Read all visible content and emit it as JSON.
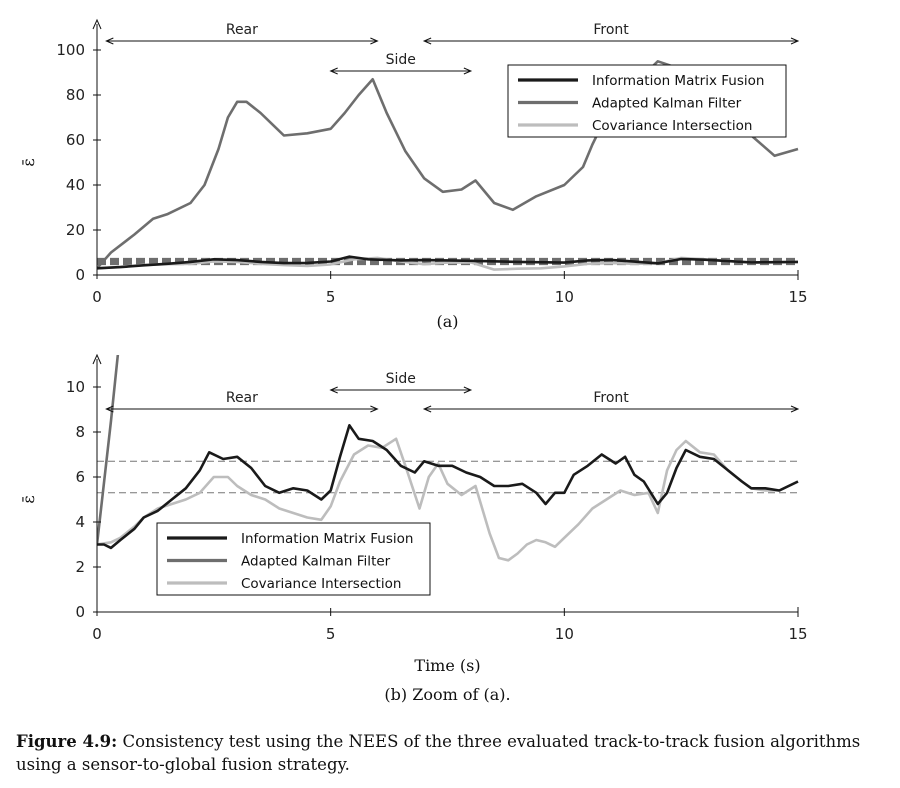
{
  "figure": {
    "label": "Figure 4.9:",
    "caption": "Consistency test using the NEES of the three evaluated track-to-track fusion algorithms using a sensor-to-global fusion strategy."
  },
  "colors": {
    "imf": "#1a1a1a",
    "akf": "#6e6e6e",
    "ci": "#bdbdbd"
  },
  "chart_data": [
    {
      "type": "line",
      "title": "",
      "subtitle": "(a)",
      "xlabel": "",
      "ylabel": "ε̄",
      "xlim": [
        0,
        15
      ],
      "ylim": [
        0,
        105
      ],
      "xticks": [
        0,
        5,
        10,
        15
      ],
      "yticks": [
        0,
        20,
        40,
        60,
        80,
        100
      ],
      "legend_position": "top-right",
      "regions": [
        {
          "label": "Rear",
          "start": 0.2,
          "end": 6.0
        },
        {
          "label": "Side",
          "start": 5.0,
          "end": 8.0
        },
        {
          "label": "Front",
          "start": 7.0,
          "end": 15.0
        }
      ],
      "reference_lines": [
        5.3,
        6.7
      ],
      "series": [
        {
          "name": "Information Matrix Fusion",
          "color_key": "imf",
          "x": [
            0,
            0.5,
            1,
            1.5,
            2,
            2.5,
            3,
            3.5,
            4,
            4.5,
            5,
            5.4,
            5.8,
            6.5,
            7,
            8,
            9,
            10,
            10.5,
            11,
            12,
            12.5,
            13,
            14,
            15
          ],
          "y": [
            3,
            3.5,
            4.3,
            5,
            5.8,
            7,
            6.6,
            5.8,
            5.3,
            5.4,
            6,
            8.2,
            7,
            6.5,
            6.6,
            6.3,
            5.8,
            5.5,
            6.5,
            6.7,
            5.2,
            7.1,
            6.8,
            5.6,
            5.8
          ]
        },
        {
          "name": "Adapted Kalman Filter",
          "color_key": "akf",
          "x": [
            0,
            0.3,
            0.8,
            1.2,
            1.5,
            2,
            2.3,
            2.6,
            2.8,
            3,
            3.2,
            3.5,
            4,
            4.5,
            5,
            5.3,
            5.6,
            5.9,
            6.2,
            6.6,
            7,
            7.4,
            7.8,
            8.1,
            8.5,
            8.9,
            9.4,
            10,
            10.4,
            10.6,
            11,
            12,
            13,
            14,
            14.5,
            15
          ],
          "y": [
            3,
            10,
            18,
            25,
            27,
            32,
            40,
            56,
            70,
            77,
            77,
            72,
            62,
            63,
            65,
            72,
            80,
            87,
            72,
            55,
            43,
            37,
            38,
            42,
            32,
            29,
            35,
            40,
            48,
            58,
            75,
            95,
            88,
            62,
            53,
            56
          ]
        },
        {
          "name": "Covariance Intersection",
          "color_key": "ci",
          "x": [
            0,
            0.5,
            1,
            1.5,
            2,
            2.5,
            3,
            3.5,
            4,
            4.5,
            5,
            5.5,
            6,
            6.5,
            7,
            7.5,
            8,
            8.5,
            9,
            9.5,
            10,
            10.5,
            11,
            11.5,
            12,
            12.5,
            13,
            14,
            15
          ],
          "y": [
            3,
            3.6,
            4.5,
            4.8,
            5,
            6,
            5.8,
            5,
            4.4,
            4,
            4.7,
            7,
            7.6,
            6,
            4.8,
            5.5,
            5.6,
            2.4,
            2.8,
            3,
            3.8,
            5,
            5.3,
            5,
            5.2,
            7.6,
            7,
            5.5,
            5.8
          ]
        }
      ]
    },
    {
      "type": "line",
      "title": "",
      "subtitle": "(b) Zoom of (a).",
      "xlabel": "Time (s)",
      "ylabel": "ε̄",
      "xlim": [
        0,
        15
      ],
      "ylim": [
        0,
        11
      ],
      "xticks": [
        0,
        5,
        10,
        15
      ],
      "yticks": [
        0,
        2,
        4,
        6,
        8,
        10
      ],
      "legend_position": "bottom-left",
      "regions": [
        {
          "label": "Rear",
          "start": 0.2,
          "end": 6.0
        },
        {
          "label": "Side",
          "start": 5.0,
          "end": 8.0
        },
        {
          "label": "Front",
          "start": 7.0,
          "end": 15.0
        }
      ],
      "reference_lines": [
        5.3,
        6.7
      ],
      "series": [
        {
          "name": "Information Matrix Fusion",
          "color_key": "imf",
          "x": [
            0,
            0.15,
            0.3,
            0.5,
            0.8,
            1,
            1.3,
            1.6,
            1.9,
            2.2,
            2.4,
            2.7,
            3,
            3.3,
            3.6,
            3.9,
            4.2,
            4.5,
            4.8,
            5,
            5.2,
            5.4,
            5.6,
            5.9,
            6.2,
            6.5,
            6.8,
            7,
            7.3,
            7.6,
            7.9,
            8.2,
            8.5,
            8.8,
            9.1,
            9.4,
            9.6,
            9.8,
            10,
            10.2,
            10.5,
            10.8,
            11.1,
            11.3,
            11.5,
            11.7,
            12,
            12.2,
            12.4,
            12.6,
            12.9,
            13.2,
            13.5,
            13.8,
            14,
            14.3,
            14.6,
            15
          ],
          "y": [
            3,
            3,
            2.85,
            3.2,
            3.7,
            4.2,
            4.5,
            5,
            5.5,
            6.3,
            7.1,
            6.8,
            6.9,
            6.4,
            5.6,
            5.3,
            5.5,
            5.4,
            5,
            5.4,
            6.9,
            8.3,
            7.7,
            7.6,
            7.2,
            6.5,
            6.2,
            6.7,
            6.5,
            6.5,
            6.2,
            6,
            5.6,
            5.6,
            5.7,
            5.3,
            4.8,
            5.3,
            5.3,
            6.1,
            6.5,
            7,
            6.6,
            6.9,
            6.1,
            5.8,
            4.8,
            5.3,
            6.4,
            7.2,
            6.9,
            6.8,
            6.3,
            5.8,
            5.5,
            5.5,
            5.4,
            5.8
          ]
        },
        {
          "name": "Adapted Kalman Filter",
          "color_key": "akf",
          "x": [
            0,
            0.3,
            0.45
          ],
          "y": [
            3,
            8.5,
            11.5
          ]
        },
        {
          "name": "Covariance Intersection",
          "color_key": "ci",
          "x": [
            0,
            0.3,
            0.5,
            0.8,
            1,
            1.3,
            1.6,
            1.9,
            2.2,
            2.5,
            2.8,
            3,
            3.3,
            3.6,
            3.9,
            4.2,
            4.5,
            4.8,
            5,
            5.2,
            5.5,
            5.8,
            6.1,
            6.4,
            6.6,
            6.9,
            7.1,
            7.3,
            7.5,
            7.8,
            8.1,
            8.4,
            8.6,
            8.8,
            9,
            9.2,
            9.4,
            9.6,
            9.8,
            10,
            10.3,
            10.6,
            10.9,
            11.2,
            11.5,
            11.8,
            12,
            12.2,
            12.4,
            12.6,
            12.9,
            13.2,
            13.5,
            13.8,
            14,
            14.3,
            14.6,
            15
          ],
          "y": [
            3,
            3.1,
            3.3,
            3.8,
            4.2,
            4.6,
            4.8,
            5,
            5.3,
            6,
            6,
            5.6,
            5.2,
            5,
            4.6,
            4.4,
            4.2,
            4.1,
            4.7,
            5.8,
            7,
            7.4,
            7.3,
            7.7,
            6.5,
            4.6,
            6,
            6.6,
            5.7,
            5.2,
            5.6,
            3.5,
            2.4,
            2.3,
            2.6,
            3,
            3.2,
            3.1,
            2.9,
            3.3,
            3.9,
            4.6,
            5,
            5.4,
            5.2,
            5.3,
            4.4,
            6.3,
            7.2,
            7.6,
            7.1,
            7,
            6.3,
            5.8,
            5.5,
            5.4,
            5.4,
            5.8
          ]
        }
      ]
    }
  ]
}
